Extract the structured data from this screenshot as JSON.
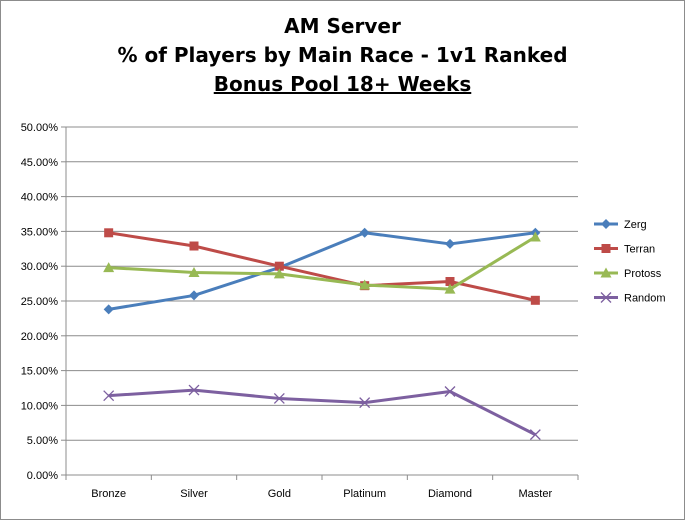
{
  "chart_data": {
    "type": "line",
    "title": [
      "AM Server",
      "% of Players by Main Race - 1v1 Ranked",
      "Bonus Pool 18+ Weeks"
    ],
    "categories": [
      "Bronze",
      "Silver",
      "Gold",
      "Platinum",
      "Diamond",
      "Master"
    ],
    "ylim": [
      0,
      50
    ],
    "yticks": [
      "0.00%",
      "5.00%",
      "10.00%",
      "15.00%",
      "20.00%",
      "25.00%",
      "30.00%",
      "35.00%",
      "40.00%",
      "45.00%",
      "50.00%"
    ],
    "grid": true,
    "legend_position": "right",
    "series": [
      {
        "name": "Zerg",
        "color": "#4a7ebb",
        "marker": "diamond",
        "values": [
          23.8,
          25.8,
          29.8,
          34.8,
          33.2,
          34.8
        ]
      },
      {
        "name": "Terran",
        "color": "#be4b48",
        "marker": "square",
        "values": [
          34.8,
          32.9,
          30.0,
          27.2,
          27.8,
          25.1
        ]
      },
      {
        "name": "Protoss",
        "color": "#98b954",
        "marker": "triangle",
        "values": [
          29.8,
          29.1,
          28.9,
          27.3,
          26.7,
          34.2
        ]
      },
      {
        "name": "Random",
        "color": "#7d60a0",
        "marker": "x",
        "values": [
          11.4,
          12.2,
          11.0,
          10.4,
          12.0,
          5.8
        ]
      }
    ]
  }
}
